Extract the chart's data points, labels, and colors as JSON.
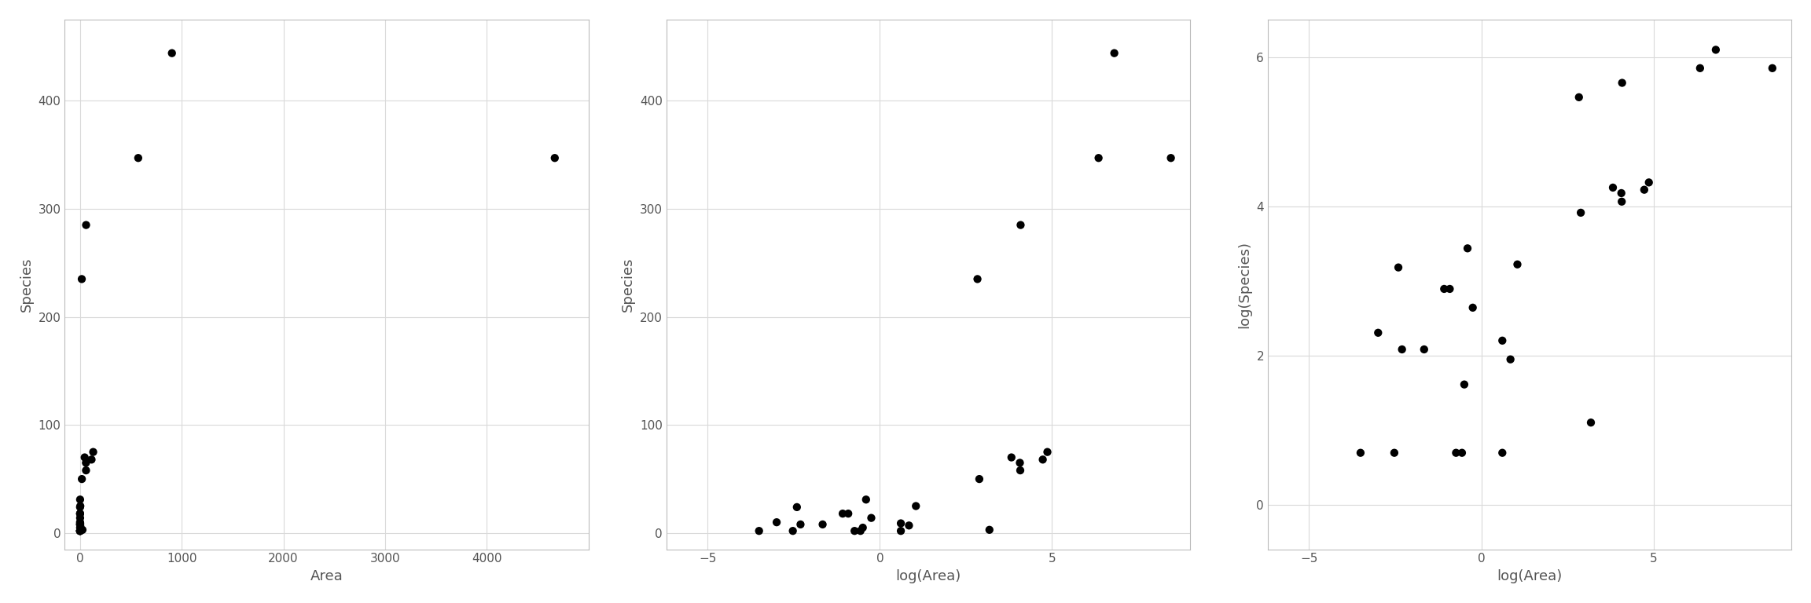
{
  "Area": [
    58.93,
    0.67,
    24.08,
    2.85,
    1.84,
    0.4,
    0.09,
    0.05,
    0.1,
    0.03,
    2.33,
    129.49,
    0.61,
    113.25,
    0.48,
    0.19,
    1.84,
    572.33,
    0.78,
    45.62,
    0.08,
    0.34,
    58.27,
    0.57,
    17.95,
    4669.32,
    903.82,
    59.56,
    17.01
  ],
  "Species": [
    58,
    31,
    3,
    25,
    2,
    18,
    24,
    10,
    8,
    2,
    7,
    75,
    5,
    68,
    2,
    8,
    9,
    347,
    14,
    70,
    2,
    18,
    65,
    2,
    50,
    347,
    444,
    285,
    235
  ],
  "background_color": "#ffffff",
  "panel_bg": "#ffffff",
  "grid_color": "#d9d9d9",
  "spine_color": "#bbbbbb",
  "point_color": "#000000",
  "point_size": 55,
  "ylabel1": "Species",
  "ylabel2": "Species",
  "ylabel3": "log(Species)",
  "xlabel1": "Area",
  "xlabel2": "log(Area)",
  "xlabel3": "log(Area)",
  "axis_label_fontsize": 13,
  "tick_fontsize": 11,
  "xlim1": [
    -150,
    5000
  ],
  "xlim2": [
    -6.2,
    9.0
  ],
  "xlim3": [
    -6.2,
    9.0
  ],
  "ylim1": [
    -15,
    475
  ],
  "ylim2": [
    -15,
    475
  ],
  "ylim3": [
    -0.6,
    6.5
  ],
  "xticks1": [
    0,
    1000,
    2000,
    3000,
    4000
  ],
  "xticks2": [
    -5,
    0,
    5
  ],
  "xticks3": [
    -5,
    0,
    5
  ],
  "yticks1": [
    0,
    100,
    200,
    300,
    400
  ],
  "yticks2": [
    0,
    100,
    200,
    300,
    400
  ],
  "yticks3": [
    0,
    2,
    4,
    6
  ]
}
